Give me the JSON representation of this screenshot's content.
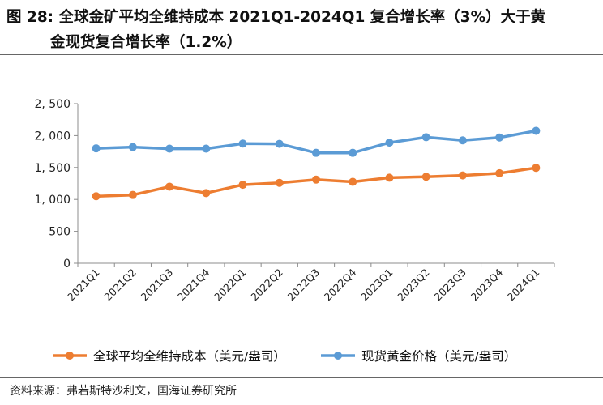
{
  "figure": {
    "title_line1": "图 28:  全球金矿平均全维持成本 2021Q1-2024Q1 复合增长率（3%）大于黄",
    "title_line2": "金现货复合增长率（1.2%）",
    "source": "资料来源：弗若斯特沙利文，国海证券研究所"
  },
  "chart_data": {
    "type": "line",
    "categories": [
      "2021Q1",
      "2021Q2",
      "2021Q3",
      "2021Q4",
      "2022Q1",
      "2022Q2",
      "2022Q3",
      "2022Q4",
      "2023Q1",
      "2023Q2",
      "2023Q3",
      "2023Q4",
      "2024Q1"
    ],
    "series": [
      {
        "name": "全球平均全维持成本（美元/盎司）",
        "color": "#ED7D31",
        "values": [
          1050,
          1070,
          1200,
          1100,
          1230,
          1260,
          1310,
          1275,
          1340,
          1355,
          1375,
          1410,
          1495
        ]
      },
      {
        "name": "现货黄金价格（美元/盎司）",
        "color": "#5B9BD5",
        "values": [
          1800,
          1820,
          1795,
          1795,
          1875,
          1870,
          1730,
          1730,
          1890,
          1975,
          1925,
          1970,
          2075
        ]
      }
    ],
    "yticks": [
      "0",
      "500",
      "1, 000",
      "1, 500",
      "2, 000",
      "2, 500"
    ],
    "ylim": [
      0,
      2500
    ],
    "grid": false,
    "legend_position": "bottom"
  }
}
